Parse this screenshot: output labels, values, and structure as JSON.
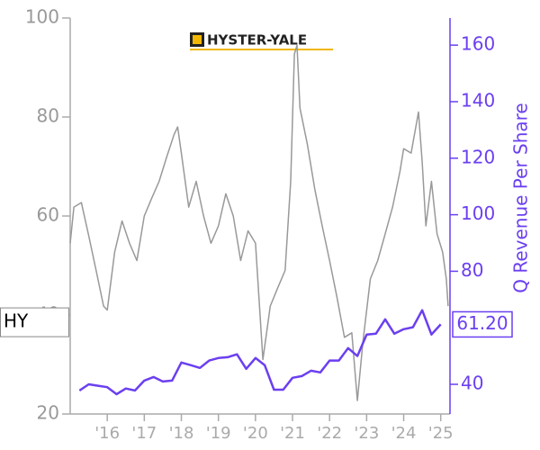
{
  "chart_data": {
    "type": "line",
    "logo": "HYSTER-YALE",
    "xlim": [
      2015.0,
      2025.25
    ],
    "xticks": [
      {
        "value": 2016,
        "label": "'16"
      },
      {
        "value": 2017,
        "label": "'17"
      },
      {
        "value": 2018,
        "label": "'18"
      },
      {
        "value": 2019,
        "label": "'19"
      },
      {
        "value": 2020,
        "label": "'20"
      },
      {
        "value": 2021,
        "label": "'21"
      },
      {
        "value": 2022,
        "label": "'22"
      },
      {
        "value": 2023,
        "label": "'23"
      },
      {
        "value": 2024,
        "label": "'24"
      },
      {
        "value": 2025,
        "label": "'25"
      }
    ],
    "ylim": [
      20,
      100
    ],
    "yticks": [
      20,
      40,
      60,
      80,
      100
    ],
    "y2lim": [
      29.5,
      169.6
    ],
    "y2ticks": [
      40,
      80,
      100,
      120,
      140,
      160
    ],
    "series": [
      {
        "name": "HY",
        "color": "#999999",
        "x": [
          2015.0,
          2015.1,
          2015.3,
          2015.5,
          2015.7,
          2015.9,
          2016.0,
          2016.2,
          2016.4,
          2016.6,
          2016.8,
          2017.0,
          2017.2,
          2017.4,
          2017.6,
          2017.8,
          2017.9,
          2018.0,
          2018.2,
          2018.4,
          2018.6,
          2018.8,
          2019.0,
          2019.2,
          2019.4,
          2019.6,
          2019.8,
          2020.0,
          2020.2,
          2020.4,
          2020.6,
          2020.8,
          2020.95,
          2021.05,
          2021.12,
          2021.2,
          2021.4,
          2021.6,
          2021.8,
          2022.0,
          2022.2,
          2022.4,
          2022.6,
          2022.75,
          2022.9,
          2023.1,
          2023.3,
          2023.5,
          2023.7,
          2023.9,
          2024.0,
          2024.2,
          2024.4,
          2024.5,
          2024.6,
          2024.75,
          2024.9,
          2025.05,
          2025.15,
          2025.2
        ],
        "values": [
          54.5,
          61.8,
          62.7,
          56,
          49,
          41.8,
          41,
          52.7,
          59,
          54.5,
          51,
          60,
          63.6,
          67,
          71.8,
          76.4,
          78,
          72.7,
          61.8,
          67,
          60,
          54.5,
          58,
          64.5,
          60,
          51,
          57,
          54.5,
          31,
          41.8,
          45.5,
          49,
          67,
          92.7,
          94.5,
          81.8,
          74.5,
          65.5,
          58,
          51,
          43.6,
          35.5,
          36.4,
          22.7,
          34.5,
          47.3,
          51,
          56.4,
          61.8,
          69,
          73.6,
          72.7,
          81,
          70.9,
          58,
          67,
          56.4,
          52.7,
          47.3,
          41.8
        ]
      },
      {
        "name": "Q Revenue Per Share",
        "color": "#6b3ff0",
        "axis": "y2",
        "x": [
          2015.25,
          2015.5,
          2015.75,
          2016.0,
          2016.25,
          2016.5,
          2016.75,
          2017.0,
          2017.25,
          2017.5,
          2017.75,
          2018.0,
          2018.25,
          2018.5,
          2018.75,
          2019.0,
          2019.25,
          2019.5,
          2019.75,
          2020.0,
          2020.25,
          2020.5,
          2020.75,
          2021.0,
          2021.25,
          2021.5,
          2021.75,
          2022.0,
          2022.25,
          2022.5,
          2022.75,
          2023.0,
          2023.25,
          2023.5,
          2023.75,
          2024.0,
          2024.25,
          2024.5,
          2024.75,
          2025.0
        ],
        "values": [
          37.8,
          40,
          39.5,
          39,
          36.5,
          38.5,
          37.8,
          41.3,
          42.6,
          41,
          41.3,
          47.7,
          46.8,
          45.8,
          48.4,
          49.3,
          49.6,
          50.6,
          45.5,
          49.3,
          46.8,
          38.1,
          38.1,
          42.3,
          42.9,
          44.8,
          44.2,
          48.4,
          48.4,
          52.8,
          50,
          57.6,
          57.9,
          63,
          57.9,
          59.5,
          60.2,
          66.2,
          57.6,
          61.2
        ],
        "value_labels": [
          null,
          null,
          null,
          null,
          null,
          null,
          null,
          null,
          null,
          null,
          null,
          null,
          null,
          null,
          null,
          null,
          null,
          null,
          null,
          null,
          null,
          null,
          null,
          null,
          null,
          null,
          null,
          null,
          null,
          null,
          null,
          null,
          null,
          null,
          null,
          null,
          null,
          null,
          null,
          "61.20"
        ]
      }
    ]
  }
}
